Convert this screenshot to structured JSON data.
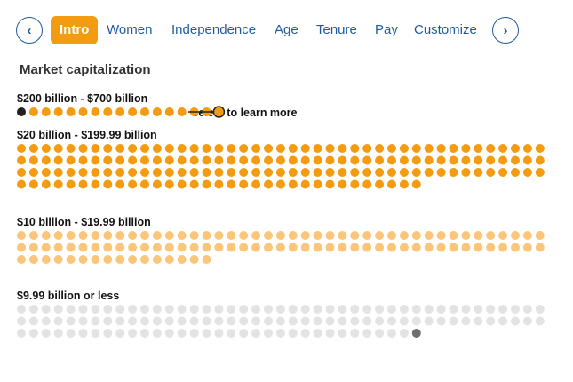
{
  "nav": {
    "prev_icon": "‹",
    "next_icon": "›",
    "tabs": [
      {
        "label": "Intro",
        "active": true
      },
      {
        "label": "Women",
        "active": false
      },
      {
        "label": "Independence",
        "active": false
      },
      {
        "label": "Age",
        "active": false
      },
      {
        "label": "Tenure",
        "active": false
      },
      {
        "label": "Pay",
        "active": false
      },
      {
        "label": "Customize",
        "active": false
      }
    ]
  },
  "chart_data": {
    "type": "dot-matrix",
    "title": "Market capitalization",
    "annotation": "Select to learn more",
    "groups": [
      {
        "label": "$200 billion - $700 billion",
        "count": 17,
        "color": "#f39c12",
        "first_highlight_color": "#222222",
        "selected_index": 16
      },
      {
        "label": "$20 billion - $199.99 billion",
        "count": 162,
        "color": "#f39c12"
      },
      {
        "label": "$10 billion - $19.99 billion",
        "count": 102,
        "color": "#fbc57a"
      },
      {
        "label": "$9.99 billion or less",
        "count": 119,
        "color": "#e3e3e3",
        "last_highlight_color": "#6e6e6e"
      }
    ]
  }
}
